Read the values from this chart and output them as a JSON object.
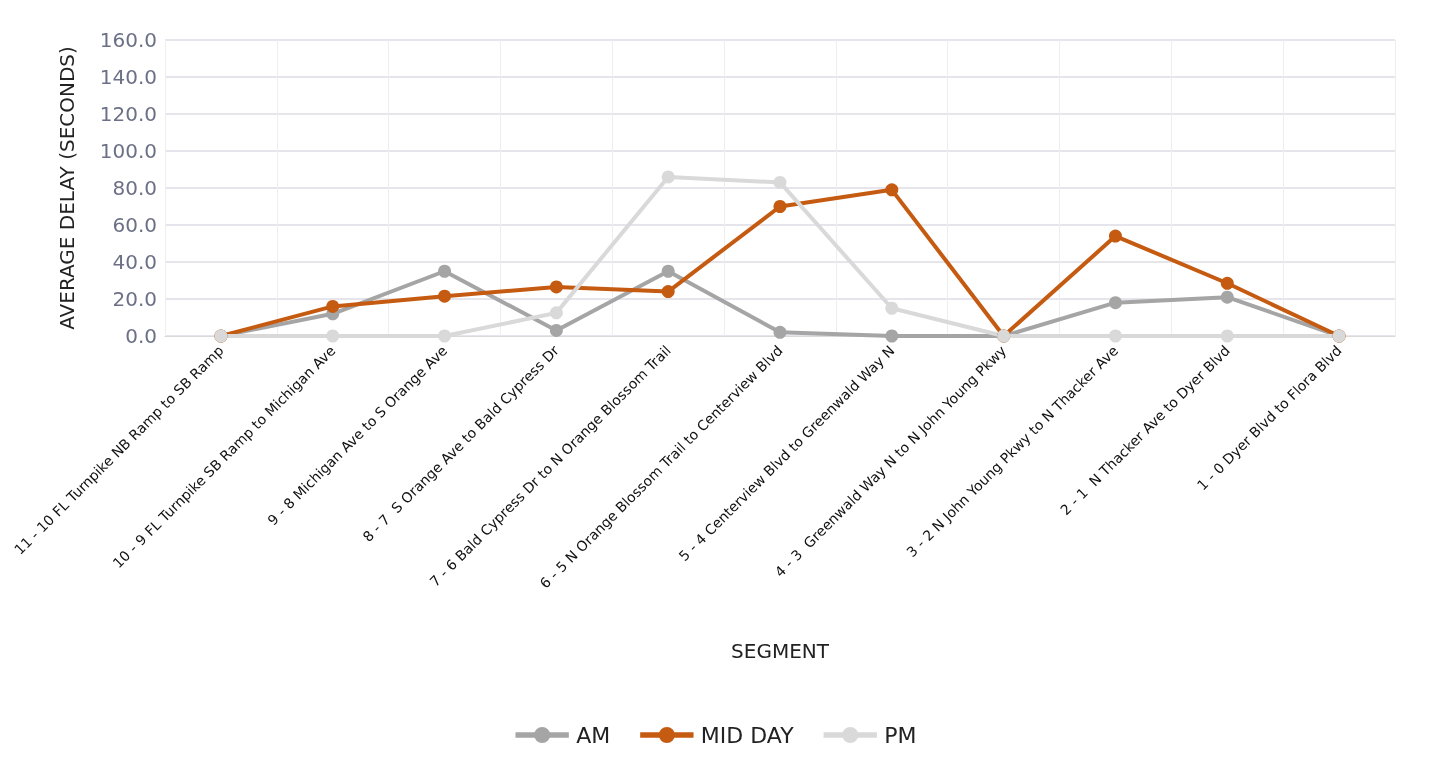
{
  "chart_data": {
    "type": "line",
    "xlabel": "SEGMENT",
    "ylabel": "AVERAGE DELAY (SECONDS)",
    "categories": [
      "11 - 10 FL Turnpike NB Ramp to SB Ramp",
      "10 - 9 FL Turnpike SB Ramp to Michigan Ave",
      "9 - 8 Michigan Ave to S Orange Ave",
      "8 - 7  S Orange Ave to Bald Cypress Dr",
      "7 - 6 Bald Cypress Dr to N Orange Blossom Trail",
      "6 - 5 N Orange Blossom Trail to Centerview Blvd",
      "5 - 4 Centerview Blvd to Greenwald Way N",
      "4 - 3  Greenwald Way N to N John Young Pkwy",
      "3 - 2 N John Young Pkwy to N Thacker Ave",
      "2 - 1  N Thacker Ave to Dyer Blvd",
      "1 - 0 Dyer Blvd to Flora Blvd"
    ],
    "series": [
      {
        "name": "AM",
        "color": "#a5a5a5",
        "values": [
          0,
          12,
          35,
          3,
          35,
          2,
          0,
          0,
          18,
          21,
          0
        ]
      },
      {
        "name": "MID DAY",
        "color": "#c55a11",
        "values": [
          0,
          16,
          21.5,
          26.5,
          24,
          70,
          79,
          0,
          54,
          28.5,
          0
        ]
      },
      {
        "name": "PM",
        "color": "#d9d9d9",
        "values": [
          0,
          0,
          0,
          12.5,
          86,
          83,
          15,
          0,
          0,
          0,
          0
        ]
      }
    ],
    "ylim": [
      0,
      160
    ],
    "yticks": [
      {
        "value": 0,
        "label": "0.0"
      },
      {
        "value": 20,
        "label": "20.0"
      },
      {
        "value": 40,
        "label": "40.0"
      },
      {
        "value": 60,
        "label": "60.0"
      },
      {
        "value": 80,
        "label": "80.0"
      },
      {
        "value": 100,
        "label": "100.0"
      },
      {
        "value": 120,
        "label": "120.0"
      },
      {
        "value": 140,
        "label": "140.0"
      },
      {
        "value": 160,
        "label": "160.0"
      }
    ],
    "grid": true,
    "legend": "bottom",
    "marker": "circle",
    "line_style": "solid"
  }
}
